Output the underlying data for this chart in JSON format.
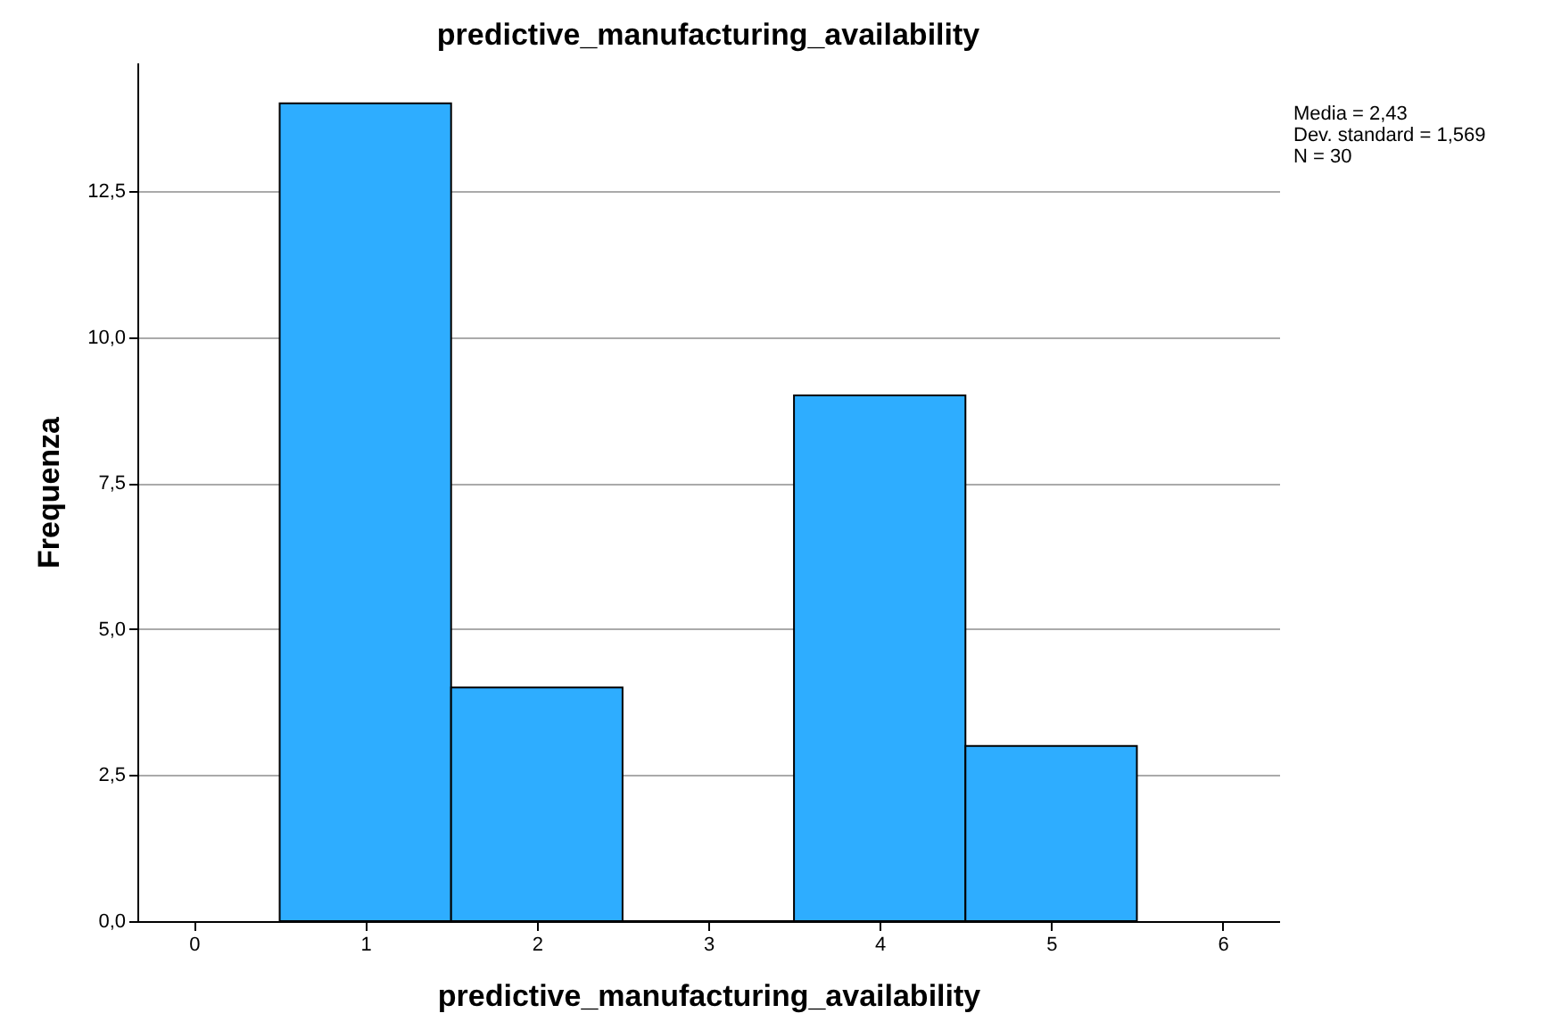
{
  "chart_data": {
    "type": "histogram",
    "title": "predictive_manufacturing_availability",
    "xlabel": "predictive_manufacturing_availability",
    "ylabel": "Frequenza",
    "bins": [
      0.5,
      1.5,
      2.5,
      3.5,
      4.5,
      5.5
    ],
    "values": [
      14,
      4,
      0,
      9,
      3
    ],
    "color": "#2eadff",
    "xlim": [
      -0.33,
      6.33
    ],
    "xticks": [
      0,
      1,
      2,
      3,
      4,
      5,
      6
    ],
    "ylim": [
      0,
      14.7
    ],
    "yticks": [
      {
        "value": 0,
        "label": "0,0"
      },
      {
        "value": 2.5,
        "label": "2,5"
      },
      {
        "value": 5,
        "label": "5,0"
      },
      {
        "value": 7.5,
        "label": "7,5"
      },
      {
        "value": 10,
        "label": "10,0"
      },
      {
        "value": 12.5,
        "label": "12,5"
      }
    ],
    "grid": "y",
    "annotations": [
      "Media = 2,43",
      "Dev. standard = 1,569",
      "N = 30"
    ]
  }
}
